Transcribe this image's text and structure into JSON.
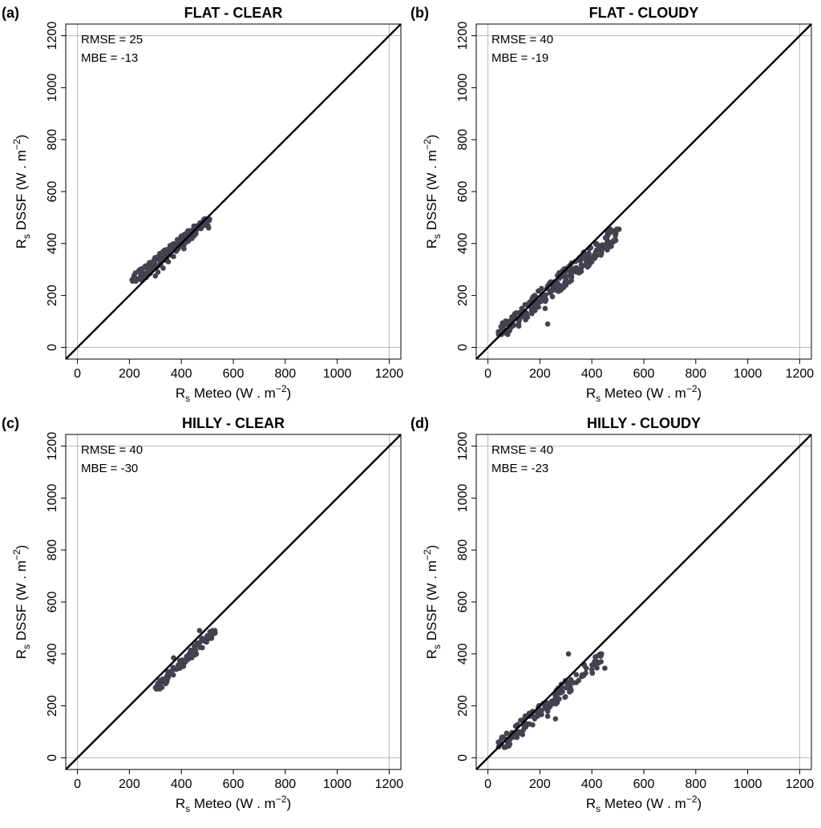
{
  "chart_data": [
    {
      "type": "scatter",
      "panel_tag": "(a)",
      "title": "FLAT - CLEAR",
      "xlabel": "Rs Meteo (W . m-2)",
      "ylabel": "Rs DSSF (W . m-2)",
      "xlim": [
        0,
        1200
      ],
      "ylim": [
        0,
        1200
      ],
      "ticks": [
        0,
        200,
        400,
        600,
        800,
        1000,
        1200
      ],
      "reference_line": "1:1",
      "stats": {
        "rmse": "RMSE = 25",
        "mbe": "MBE = -13"
      },
      "points_cluster": {
        "x_range": [
          210,
          510
        ],
        "y_range": [
          255,
          495
        ],
        "count": 180
      },
      "points": [
        [
          210,
          260
        ],
        [
          250,
          258
        ],
        [
          265,
          270
        ],
        [
          280,
          285
        ],
        [
          290,
          300
        ],
        [
          300,
          275
        ],
        [
          305,
          310
        ],
        [
          310,
          290
        ],
        [
          320,
          320
        ],
        [
          330,
          305
        ],
        [
          340,
          335
        ],
        [
          350,
          330
        ],
        [
          360,
          355
        ],
        [
          370,
          350
        ],
        [
          380,
          370
        ],
        [
          390,
          385
        ],
        [
          400,
          395
        ],
        [
          410,
          380
        ],
        [
          420,
          440
        ],
        [
          430,
          415
        ],
        [
          440,
          420
        ],
        [
          450,
          430
        ],
        [
          460,
          455
        ],
        [
          470,
          470
        ],
        [
          480,
          480
        ],
        [
          490,
          490
        ],
        [
          500,
          470
        ],
        [
          505,
          460
        ]
      ]
    },
    {
      "type": "scatter",
      "panel_tag": "(b)",
      "title": "FLAT - CLOUDY",
      "xlabel": "Rs Meteo (W . m-2)",
      "ylabel": "Rs DSSF (W . m-2)",
      "xlim": [
        0,
        1200
      ],
      "ylim": [
        0,
        1200
      ],
      "ticks": [
        0,
        200,
        400,
        600,
        800,
        1000,
        1200
      ],
      "reference_line": "1:1",
      "stats": {
        "rmse": "RMSE = 40",
        "mbe": "MBE = -19"
      },
      "points_cluster": {
        "x_range": [
          40,
          510
        ],
        "y_range": [
          50,
          455
        ],
        "count": 220
      },
      "points": [
        [
          40,
          60
        ],
        [
          50,
          80
        ],
        [
          60,
          70
        ],
        [
          80,
          95
        ],
        [
          100,
          85
        ],
        [
          120,
          110
        ],
        [
          150,
          130
        ],
        [
          180,
          160
        ],
        [
          200,
          175
        ],
        [
          220,
          150
        ],
        [
          240,
          210
        ],
        [
          260,
          230
        ],
        [
          280,
          220
        ],
        [
          300,
          260
        ],
        [
          320,
          300
        ],
        [
          340,
          290
        ],
        [
          360,
          340
        ],
        [
          380,
          350
        ],
        [
          400,
          330
        ],
        [
          440,
          380
        ],
        [
          500,
          455
        ],
        [
          230,
          90
        ],
        [
          180,
          200
        ],
        [
          130,
          150
        ]
      ]
    },
    {
      "type": "scatter",
      "panel_tag": "(c)",
      "title": "HILLY - CLEAR",
      "xlabel": "Rs Meteo (W . m-2)",
      "ylabel": "Rs DSSF (W . m-2)",
      "xlim": [
        0,
        1200
      ],
      "ylim": [
        0,
        1200
      ],
      "ticks": [
        0,
        200,
        400,
        600,
        800,
        1000,
        1200
      ],
      "reference_line": "1:1",
      "stats": {
        "rmse": "RMSE = 40",
        "mbe": "MBE = -30"
      },
      "points_cluster": {
        "x_range": [
          300,
          530
        ],
        "y_range": [
          265,
          490
        ],
        "count": 90
      },
      "points": [
        [
          300,
          270
        ],
        [
          310,
          280
        ],
        [
          320,
          275
        ],
        [
          330,
          295
        ],
        [
          340,
          300
        ],
        [
          350,
          310
        ],
        [
          360,
          330
        ],
        [
          370,
          385
        ],
        [
          380,
          340
        ],
        [
          390,
          345
        ],
        [
          400,
          360
        ],
        [
          410,
          375
        ],
        [
          420,
          390
        ],
        [
          430,
          400
        ],
        [
          440,
          410
        ],
        [
          450,
          430
        ],
        [
          460,
          440
        ],
        [
          470,
          490
        ],
        [
          480,
          460
        ],
        [
          490,
          450
        ],
        [
          500,
          470
        ],
        [
          510,
          465
        ],
        [
          530,
          480
        ]
      ]
    },
    {
      "type": "scatter",
      "panel_tag": "(d)",
      "title": "HILLY - CLOUDY",
      "xlabel": "Rs Meteo (W . m-2)",
      "ylabel": "Rs DSSF (W . m-2)",
      "xlim": [
        0,
        1200
      ],
      "ylim": [
        0,
        1200
      ],
      "ticks": [
        0,
        200,
        400,
        600,
        800,
        1000,
        1200
      ],
      "reference_line": "1:1",
      "stats": {
        "rmse": "RMSE = 40",
        "mbe": "MBE = -23"
      },
      "points_cluster": {
        "x_range": [
          40,
          450
        ],
        "y_range": [
          40,
          400
        ],
        "count": 110
      },
      "points": [
        [
          40,
          60
        ],
        [
          60,
          80
        ],
        [
          80,
          45
        ],
        [
          100,
          90
        ],
        [
          120,
          100
        ],
        [
          140,
          120
        ],
        [
          160,
          130
        ],
        [
          180,
          150
        ],
        [
          200,
          170
        ],
        [
          220,
          200
        ],
        [
          240,
          210
        ],
        [
          260,
          230
        ],
        [
          280,
          250
        ],
        [
          300,
          270
        ],
        [
          310,
          400
        ],
        [
          320,
          300
        ],
        [
          340,
          320
        ],
        [
          370,
          360
        ],
        [
          400,
          340
        ],
        [
          420,
          370
        ],
        [
          450,
          345
        ],
        [
          260,
          150
        ],
        [
          230,
          160
        ]
      ]
    }
  ],
  "style": {
    "point_color": "#45414f",
    "line_color": "#000000",
    "grid_color": "#b8b8b8"
  }
}
